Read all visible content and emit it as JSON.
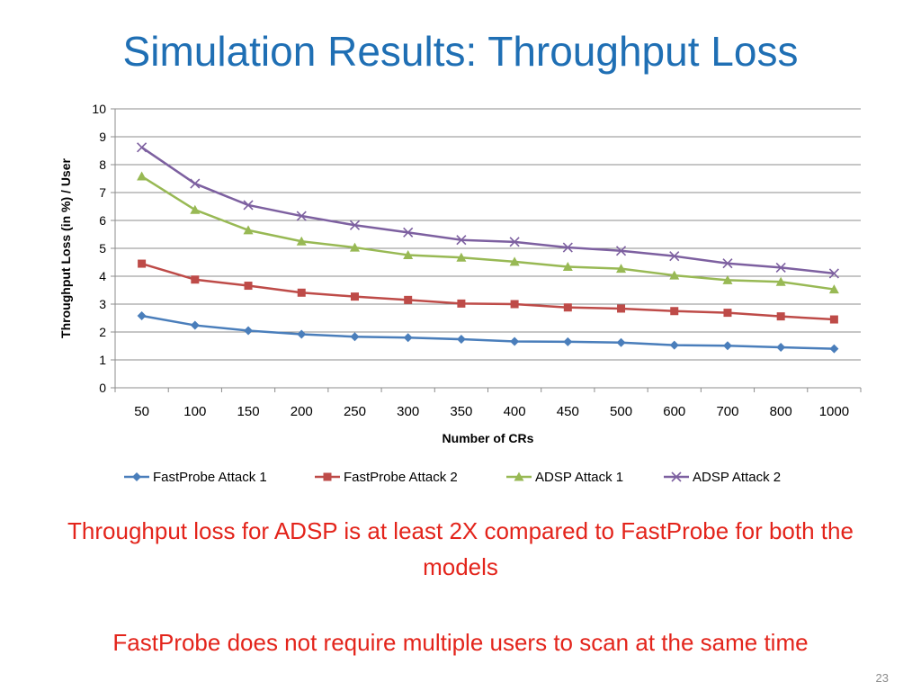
{
  "slide": {
    "title": "Simulation Results: Throughput Loss",
    "notes": [
      "Throughput loss for ADSP is at least 2X compared to FastProbe for both the models",
      "FastProbe does not require multiple users to scan at the same time"
    ],
    "page_number": "23"
  },
  "chart_data": {
    "type": "line",
    "title": "",
    "xlabel": "Number of CRs",
    "ylabel": "Throughput Loss (in %) / User",
    "categories": [
      "50",
      "100",
      "150",
      "200",
      "250",
      "300",
      "350",
      "400",
      "450",
      "500",
      "600",
      "700",
      "800",
      "1000"
    ],
    "ylim": [
      0,
      10
    ],
    "yticks": [
      "0",
      "1",
      "2",
      "3",
      "4",
      "5",
      "6",
      "7",
      "8",
      "9",
      "10"
    ],
    "grid": "horizontal",
    "legend_position": "bottom",
    "series": [
      {
        "name": "FastProbe Attack 1",
        "color": "#4a7ebb",
        "marker": "diamond",
        "values": [
          2.58,
          2.24,
          2.05,
          1.92,
          1.83,
          1.8,
          1.74,
          1.66,
          1.65,
          1.62,
          1.53,
          1.51,
          1.45,
          1.4
        ]
      },
      {
        "name": "FastProbe Attack 2",
        "color": "#be4b48",
        "marker": "square",
        "values": [
          4.45,
          3.88,
          3.66,
          3.41,
          3.27,
          3.15,
          3.02,
          3.0,
          2.88,
          2.84,
          2.75,
          2.69,
          2.56,
          2.45
        ]
      },
      {
        "name": "ADSP Attack 1",
        "color": "#98b954",
        "marker": "triangle",
        "values": [
          7.58,
          6.38,
          5.65,
          5.25,
          5.03,
          4.76,
          4.67,
          4.52,
          4.34,
          4.27,
          4.03,
          3.86,
          3.8,
          3.53
        ]
      },
      {
        "name": "ADSP Attack 2",
        "color": "#7d60a0",
        "marker": "x",
        "values": [
          8.62,
          7.32,
          6.55,
          6.16,
          5.83,
          5.57,
          5.3,
          5.23,
          5.03,
          4.91,
          4.72,
          4.46,
          4.31,
          4.1
        ]
      }
    ]
  }
}
